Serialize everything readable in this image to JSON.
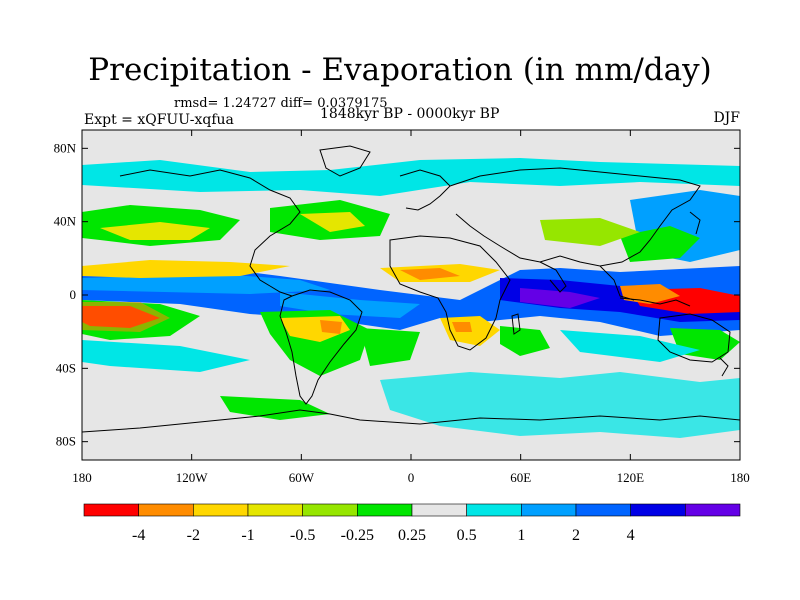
{
  "title": "Precipitation - Evaporation (in mm/day)",
  "stats": "rmsd= 1.24727 diff= 0.0379175",
  "experiment_label": "Expt = xQFUU-xqfua",
  "period": "1848kyr BP - 0000kyr BP",
  "season": "DJF",
  "chart_data": {
    "type": "heatmap",
    "title": "Precipitation - Evaporation (in mm/day)",
    "variable": "precipitation minus evaporation difference",
    "units": "mm/day",
    "projection": "cylindrical equidistant, global",
    "x_range": [
      -180,
      180
    ],
    "y_range": [
      -90,
      90
    ],
    "x_ticks": [
      {
        "value": -180,
        "label": "180"
      },
      {
        "value": -120,
        "label": "120W"
      },
      {
        "value": -60,
        "label": "60W"
      },
      {
        "value": 0,
        "label": "0"
      },
      {
        "value": 60,
        "label": "60E"
      },
      {
        "value": 120,
        "label": "120E"
      },
      {
        "value": 180,
        "label": "180"
      }
    ],
    "y_ticks": [
      {
        "value": 80,
        "label": "80N"
      },
      {
        "value": 40,
        "label": "40N"
      },
      {
        "value": 0,
        "label": "0"
      },
      {
        "value": -40,
        "label": "40S"
      },
      {
        "value": -80,
        "label": "80S"
      }
    ],
    "colorbar": {
      "colors": [
        "#ff0000",
        "#ff8c00",
        "#ffd700",
        "#e5e600",
        "#96e600",
        "#00e600",
        "#e6e6e6",
        "#00e6e6",
        "#00a0ff",
        "#0064ff",
        "#0000e6",
        "#6400e6"
      ],
      "labels": [
        "-4",
        "-2",
        "-1",
        "-0.5",
        "-0.25",
        "0.25",
        "0.5",
        "1",
        "2",
        "4"
      ],
      "thresholds": [
        -4,
        -2,
        -1,
        -0.5,
        -0.25,
        0.25,
        0.5,
        1,
        2,
        4
      ]
    },
    "regions": [
      {
        "lon": 150,
        "lat": -2,
        "rx": 22,
        "ry": 9,
        "value": -5
      },
      {
        "lon": -165,
        "lat": -10,
        "rx": 14,
        "ry": 6,
        "value": -5
      },
      {
        "lon": -45,
        "lat": -15,
        "rx": 6,
        "ry": 5,
        "value": -3
      },
      {
        "lon": 20,
        "lat": -14,
        "rx": 4,
        "ry": 3,
        "value": -3
      },
      {
        "lon": -10,
        "lat": 12,
        "rx": 10,
        "ry": 4,
        "value": -1.5
      },
      {
        "lon": 60,
        "lat": -5,
        "rx": 30,
        "ry": 8,
        "value": 3
      },
      {
        "lon": 100,
        "lat": -8,
        "rx": 30,
        "ry": 6,
        "value": 3
      },
      {
        "lon": -20,
        "lat": -8,
        "rx": 18,
        "ry": 4,
        "value": 1.5
      },
      {
        "lon": -110,
        "lat": 5,
        "rx": 50,
        "ry": 3,
        "value": 1.5
      },
      {
        "lon": 160,
        "lat": 20,
        "rx": 20,
        "ry": 8,
        "value": 1.5
      }
    ],
    "levels_note": "shaded bands between thresholds; near-zero values shown grey"
  }
}
